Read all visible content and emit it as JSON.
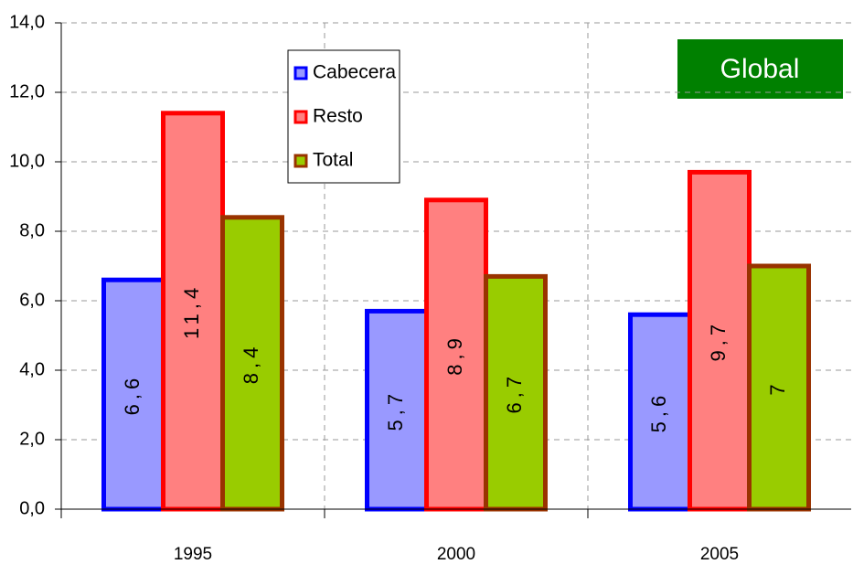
{
  "chart_data": {
    "type": "bar",
    "categories": [
      "1995",
      "2000",
      "2005"
    ],
    "series": [
      {
        "name": "Cabecera",
        "color": "#9999ff",
        "edgecolor": "#0000ff",
        "values": [
          6.6,
          5.7,
          5.6
        ],
        "value_labels": [
          "6,6",
          "5,7",
          "5,6"
        ]
      },
      {
        "name": "Resto",
        "color": "#ff8080",
        "edgecolor": "#ff0000",
        "values": [
          11.4,
          8.9,
          9.7
        ],
        "value_labels": [
          "11,4",
          "8,9",
          "9,7"
        ]
      },
      {
        "name": "Total",
        "color": "#99cc00",
        "edgecolor": "#993300",
        "values": [
          8.4,
          6.7,
          7
        ],
        "value_labels": [
          "8,4",
          "6,7",
          "7"
        ]
      }
    ],
    "annotation": "Global",
    "ylim": [
      0,
      14
    ],
    "yticks": [
      {
        "value": 0,
        "label": "0,0"
      },
      {
        "value": 2,
        "label": "2,0"
      },
      {
        "value": 4,
        "label": "4,0"
      },
      {
        "value": 6,
        "label": "6,0"
      },
      {
        "value": 8,
        "label": "8,0"
      },
      {
        "value": 10,
        "label": "10,0"
      },
      {
        "value": 12,
        "label": "12,0"
      },
      {
        "value": 14,
        "label": "14,0"
      }
    ],
    "grid": true
  }
}
